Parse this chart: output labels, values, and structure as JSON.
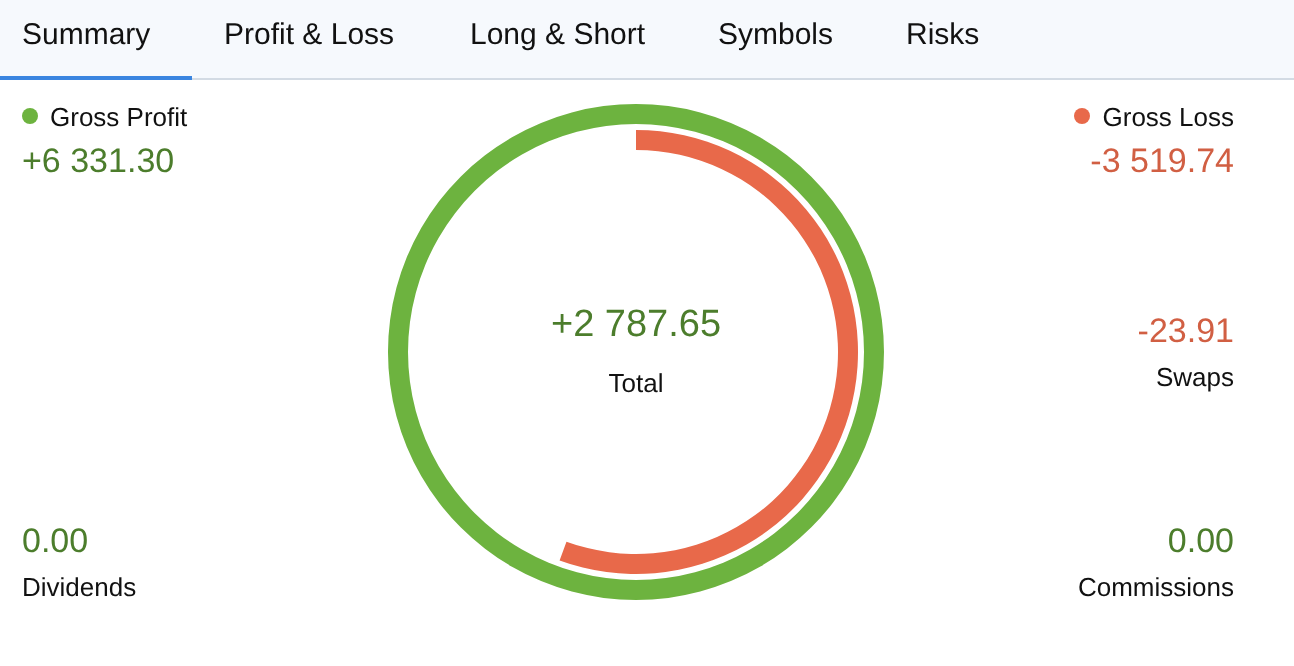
{
  "chart_data": {
    "type": "other",
    "categories": [
      "Gross Profit",
      "Gross Loss",
      "Total",
      "Swaps",
      "Dividends",
      "Commissions"
    ],
    "values": [
      6331.3,
      -3519.74,
      2787.65,
      -23.91,
      0,
      0
    ],
    "value_labels": [
      "+6 331.30",
      "-3 519.74",
      "+2 787.65",
      "-23.91",
      "0.00",
      "0.00"
    ],
    "colors": [
      "#6db33f",
      "#e8694a",
      "#6db33f",
      "#e8694a",
      "#6db33f",
      "#6db33f"
    ],
    "annotations": [
      "Summary",
      "Profit & Loss",
      "Long & Short",
      "Symbols",
      "Risks"
    ]
  }
}
